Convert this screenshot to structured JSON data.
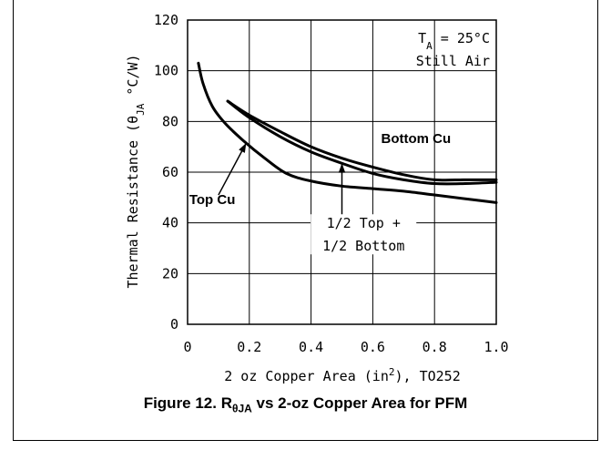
{
  "caption": {
    "prefix": "Figure 12. R",
    "sub": "θJA",
    "suffix": " vs 2-oz Copper Area for PFM"
  },
  "chart_data": {
    "type": "line",
    "xlim": [
      0,
      1.0
    ],
    "ylim": [
      0,
      120
    ],
    "x_ticks": [
      "0",
      "0.2",
      "0.4",
      "0.6",
      "0.8",
      "1.0"
    ],
    "y_ticks": [
      "0",
      "20",
      "40",
      "60",
      "80",
      "100",
      "120"
    ],
    "grid": true,
    "xlabel": {
      "main": "2 oz Copper Area (in",
      "sup": "2",
      "tail": "), TO252"
    },
    "ylabel": {
      "main": "Thermal Resistance (θ",
      "sub": "JA",
      "tail": " °C/W)"
    },
    "conditions": {
      "line1_main": "T",
      "line1_sub": "A",
      "line1_tail": " = 25°C",
      "line2": "Still Air"
    },
    "series": [
      {
        "name": "Top Cu",
        "x": [
          0.035,
          0.05,
          0.08,
          0.12,
          0.18,
          0.25,
          0.32,
          0.4,
          0.5,
          0.6,
          0.7,
          0.8,
          0.9,
          1.0
        ],
        "y": [
          103,
          95,
          86,
          79.5,
          72.5,
          65.5,
          59.5,
          56.5,
          54.5,
          53.5,
          52.5,
          51,
          49.5,
          48
        ]
      },
      {
        "name": "Bottom Cu",
        "x": [
          0.13,
          0.2,
          0.3,
          0.4,
          0.5,
          0.6,
          0.7,
          0.8,
          0.9,
          1.0
        ],
        "y": [
          88,
          82.5,
          76,
          70,
          65.5,
          62,
          59,
          57,
          57,
          57
        ]
      },
      {
        "name": "1/2 Top + 1/2 Bottom",
        "x": [
          0.13,
          0.2,
          0.3,
          0.4,
          0.5,
          0.6,
          0.7,
          0.8,
          0.9,
          1.0
        ],
        "y": [
          88,
          81.5,
          74,
          68,
          63.5,
          59.5,
          57,
          55.5,
          55.5,
          56
        ]
      }
    ],
    "annotations": [
      {
        "text": "Top Cu",
        "x": 0.08,
        "y": 47.5
      },
      {
        "text": "Bottom Cu",
        "x": 0.74,
        "y": 71.5
      },
      {
        "text": "1/2 Top +",
        "line2": "1/2 Bottom",
        "x": 0.57,
        "y": 38
      }
    ]
  }
}
